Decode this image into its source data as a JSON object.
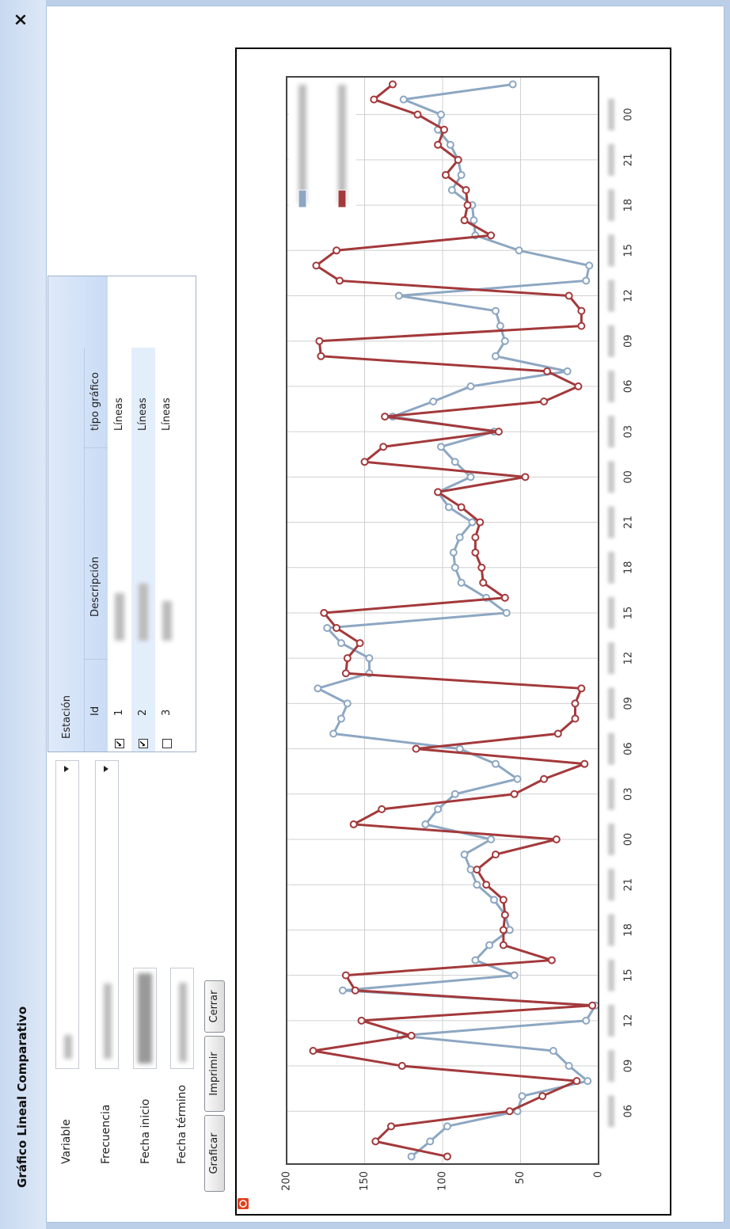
{
  "window": {
    "title": "Gráfico Lineal Comparativo",
    "close": "×"
  },
  "form": {
    "labels": [
      "Variable",
      "Frecuencia",
      "Fecha inicio",
      "Fecha término"
    ]
  },
  "buttons": [
    "Graficar",
    "Imprimir",
    "Cerrar"
  ],
  "table": {
    "title": "Estación",
    "columns": [
      "Id",
      "Descripción",
      "tipo gráfico"
    ],
    "rows": [
      {
        "id": "1",
        "type": "Líneas",
        "checked": true
      },
      {
        "id": "2",
        "type": "Líneas",
        "checked": true
      },
      {
        "id": "3",
        "type": "Líneas",
        "checked": false
      }
    ]
  },
  "chart_data": {
    "type": "line",
    "categories": [
      null,
      null,
      null,
      "06",
      null,
      null,
      "09",
      null,
      null,
      "12",
      null,
      null,
      "15",
      null,
      null,
      "18",
      null,
      null,
      "21",
      null,
      null,
      "00",
      null,
      null,
      "03",
      null,
      null,
      "06",
      null,
      null,
      "09",
      null,
      null,
      "12",
      null,
      null,
      "15",
      null,
      null,
      "18",
      null,
      null,
      "21",
      null,
      null,
      "00",
      null,
      null,
      "03",
      null,
      null,
      "06",
      null,
      null,
      "09",
      null,
      null,
      "12",
      null,
      null,
      "15",
      null,
      null,
      "18",
      null,
      null,
      "21",
      null,
      null,
      "00",
      null,
      null
    ],
    "series": [
      {
        "color": "#8da7c2",
        "values": [
          120,
          108,
          97,
          52,
          49,
          7,
          19,
          29,
          127,
          8,
          2,
          164,
          54,
          79,
          70,
          57,
          60,
          67,
          78,
          82,
          86,
          69,
          111,
          103,
          92,
          52,
          66,
          89,
          170,
          165,
          161,
          180,
          147,
          147,
          165,
          174,
          59,
          72,
          88,
          92,
          93,
          89,
          81,
          96,
          103,
          82,
          92,
          101,
          67,
          132,
          106,
          82,
          20,
          66,
          60,
          63,
          66,
          128,
          8,
          6,
          51,
          79,
          80,
          81,
          94,
          88,
          90,
          95,
          103,
          101,
          125,
          55
        ]
      },
      {
        "color": "#a3393b",
        "values": [
          97,
          143,
          133,
          57,
          36,
          14,
          126,
          183,
          120,
          152,
          4,
          156,
          162,
          30,
          61,
          61,
          60,
          61,
          72,
          78,
          66,
          27,
          157,
          139,
          54,
          35,
          9,
          117,
          26,
          15,
          15,
          11,
          162,
          161,
          153,
          168,
          176,
          60,
          74,
          75,
          79,
          79,
          76,
          88,
          103,
          47,
          150,
          138,
          64,
          137,
          35,
          13,
          33,
          178,
          179,
          11,
          11,
          19,
          166,
          181,
          168,
          69,
          86,
          84,
          85,
          98,
          90,
          103,
          99,
          116,
          144,
          132
        ]
      }
    ],
    "ylim": [
      0,
      200
    ],
    "yticks": [
      0,
      50,
      100,
      150,
      200
    ],
    "grid": true
  }
}
